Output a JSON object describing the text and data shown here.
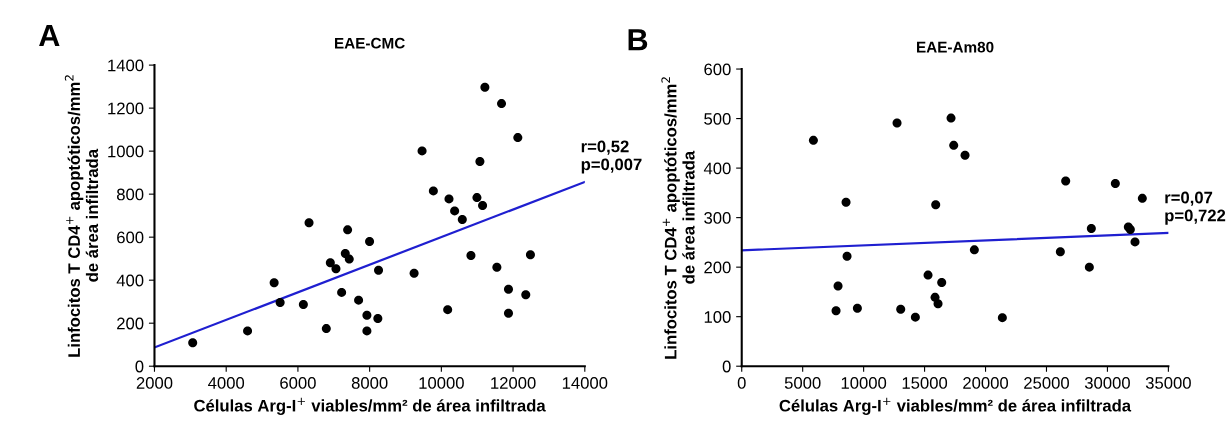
{
  "chart_data": [
    {
      "type": "scatter",
      "title": "EAE-CMC",
      "xlabel": "Células Arg-I$^{+}$ viables/mm² de área infiltrada",
      "ylabel": "Linfocitos T CD4$^{+}$ apoptóticos/mm$^{2}$\nde área infiltrada",
      "xlim": [
        2000,
        14000
      ],
      "xticks": [
        2000,
        4000,
        6000,
        8000,
        10000,
        12000,
        14000
      ],
      "ylim": [
        0,
        1400
      ],
      "yticks": [
        0,
        200,
        400,
        600,
        800,
        1000,
        1200,
        1400
      ],
      "grid": false,
      "legend": false,
      "marker": "circle",
      "annotations": [
        "A",
        "r=0,52\np=0,007"
      ],
      "series": [
        {
          "color": "#000000",
          "x": [
            3066,
            4596,
            5337,
            5504,
            6152,
            6310,
            6792,
            6904,
            7061,
            7219,
            7321,
            7386,
            7432,
            7692,
            7924,
            7924,
            7998,
            8229,
            8248,
            9240,
            9462,
            9777,
            10176,
            10213,
            10370,
            10584,
            10825,
            10992,
            11075,
            11149,
            11214,
            11548,
            11678,
            11872,
            11872,
            12132,
            12354,
            12484
          ],
          "values": [
            109,
            164,
            388,
            296,
            287,
            667,
            175,
            481,
            453,
            343,
            524,
            634,
            498,
            307,
            237,
            164,
            580,
            222,
            446,
            432,
            1001,
            815,
            263,
            778,
            722,
            682,
            515,
            784,
            952,
            747,
            1297,
            460,
            1221,
            358,
            246,
            1063,
            332,
            518
          ]
        },
        {
          "type": "line",
          "marker": "none",
          "color": "#1f1fd0",
          "x": [
            2000,
            14000
          ],
          "values": [
            87,
            857
          ]
        }
      ]
    },
    {
      "type": "scatter",
      "title": "EAE-Am80",
      "xlabel": "Células Arg-I$^{+}$ viables/mm² de área infiltrada",
      "ylabel": "Linfocitos T CD4$^{+}$ apoptóticos/mm$^{2}$\nde área infiltrada",
      "xlim": [
        0,
        35000
      ],
      "xticks": [
        0,
        5000,
        10000,
        15000,
        20000,
        25000,
        30000,
        35000
      ],
      "ylim": [
        0,
        600
      ],
      "yticks": [
        0,
        100,
        200,
        300,
        400,
        500,
        600
      ],
      "grid": false,
      "legend": false,
      "marker": "circle",
      "annotations": [
        "B",
        "r=0,07\np=0,722"
      ],
      "series": [
        {
          "color": "#000000",
          "x": [
            5879,
            7738,
            7902,
            8558,
            8640,
            9488,
            12741,
            13042,
            14245,
            15284,
            15858,
            15913,
            16104,
            16405,
            17171,
            17389,
            18319,
            19084,
            21381,
            26138,
            26576,
            28517,
            28681,
            30650,
            31716,
            31880,
            32263,
            32864
          ],
          "values": [
            456,
            112,
            162,
            331,
            222,
            117,
            491,
            115,
            99,
            184,
            139,
            326,
            126,
            169,
            501,
            446,
            426,
            235,
            98,
            231,
            374,
            200,
            278,
            369,
            281,
            276,
            251,
            339
          ]
        },
        {
          "type": "line",
          "marker": "none",
          "color": "#1f1fd0",
          "x": [
            0,
            35000
          ],
          "values": [
            234,
            269
          ]
        }
      ]
    }
  ]
}
